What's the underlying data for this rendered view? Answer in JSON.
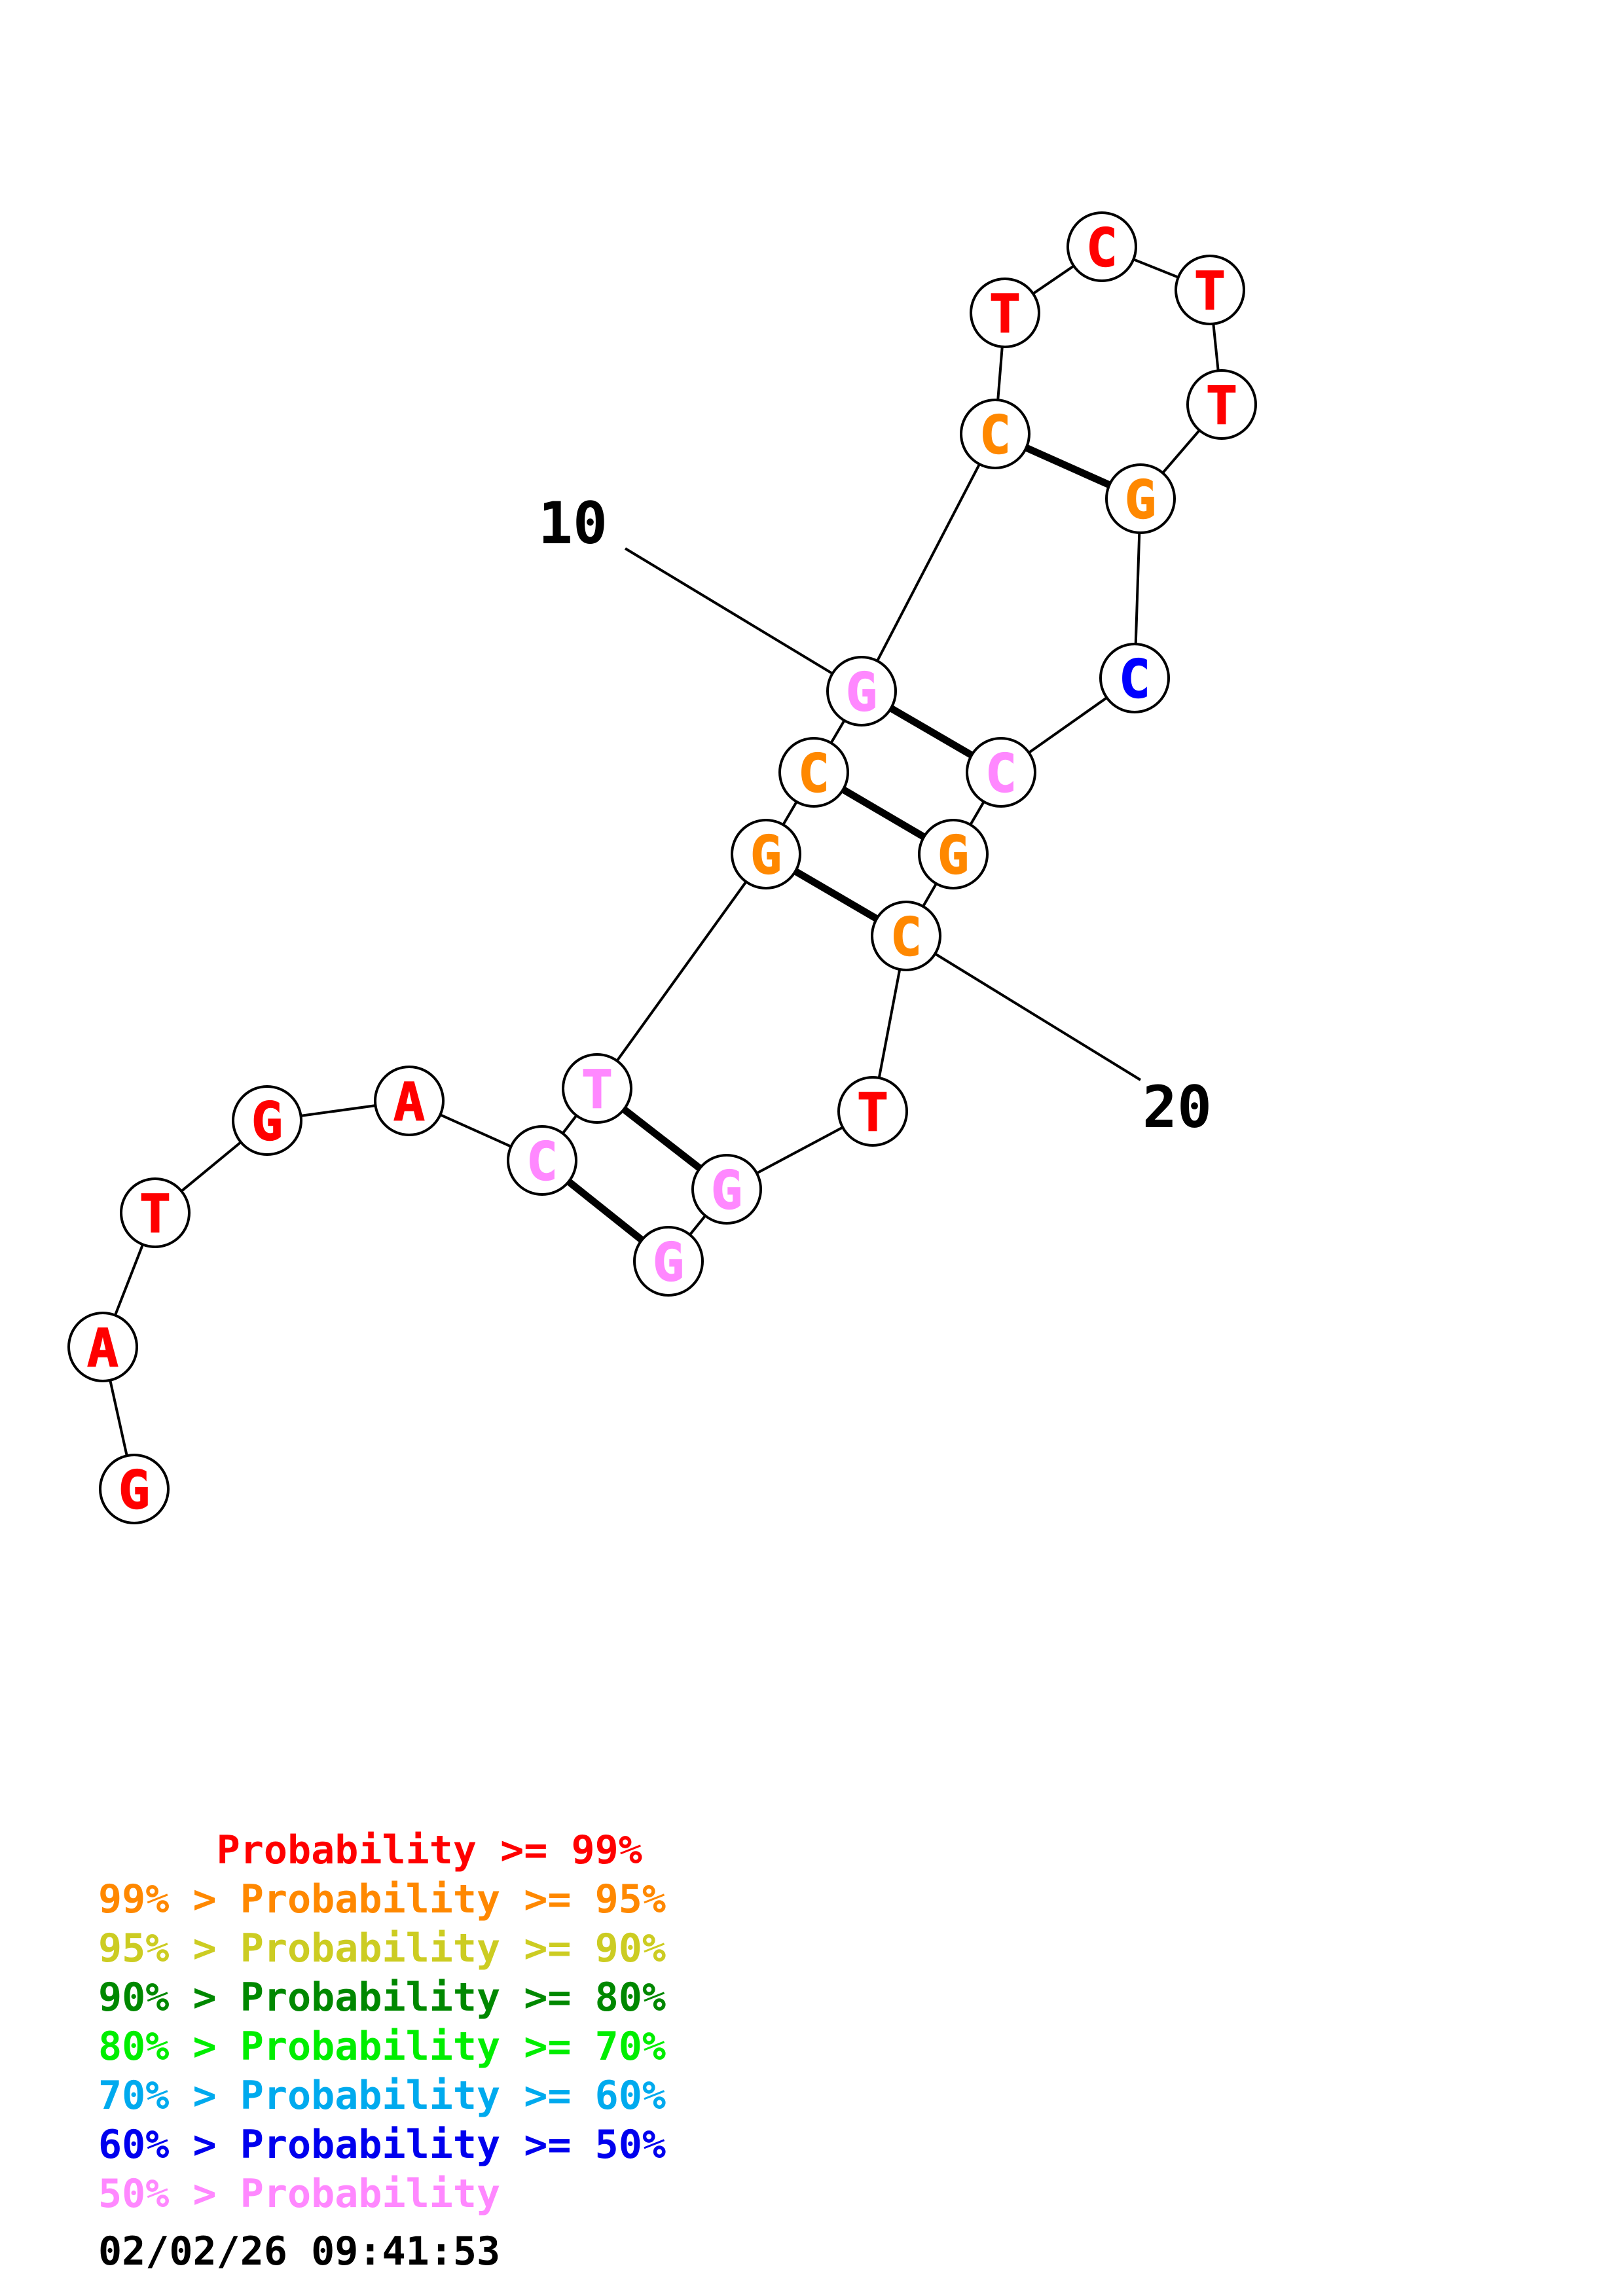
{
  "structure": {
    "nucleotides": [
      {
        "base": "G",
        "color": "#ff0000"
      },
      {
        "base": "A",
        "color": "#ff0000"
      },
      {
        "base": "T",
        "color": "#ff0000"
      },
      {
        "base": "G",
        "color": "#ff0000"
      },
      {
        "base": "A",
        "color": "#ff0000"
      },
      {
        "base": "C",
        "color": "#ff88ff"
      },
      {
        "base": "T",
        "color": "#ff88ff"
      },
      {
        "base": "G",
        "color": "#ff8800"
      },
      {
        "base": "C",
        "color": "#ff8800"
      },
      {
        "base": "G",
        "color": "#ff88ff"
      },
      {
        "base": "C",
        "color": "#ff8800"
      },
      {
        "base": "T",
        "color": "#ff0000"
      },
      {
        "base": "C",
        "color": "#ff0000"
      },
      {
        "base": "T",
        "color": "#ff0000"
      },
      {
        "base": "T",
        "color": "#ff0000"
      },
      {
        "base": "G",
        "color": "#ff8800"
      },
      {
        "base": "C",
        "color": "#0000ff"
      },
      {
        "base": "C",
        "color": "#ff88ff"
      },
      {
        "base": "G",
        "color": "#ff8800"
      },
      {
        "base": "C",
        "color": "#ff8800"
      },
      {
        "base": "T",
        "color": "#ff0000"
      },
      {
        "base": "G",
        "color": "#ff88ff"
      },
      {
        "base": "G",
        "color": "#ff88ff"
      }
    ],
    "pairs": [
      [
        6,
        23
      ],
      [
        7,
        22
      ],
      [
        8,
        20
      ],
      [
        9,
        19
      ],
      [
        10,
        18
      ],
      [
        11,
        16
      ]
    ],
    "position_labels": [
      {
        "text": "10",
        "index": 10
      },
      {
        "text": "20",
        "index": 20
      }
    ]
  },
  "legend": [
    {
      "text": "     Probability >= 99%",
      "color": "#ff0000"
    },
    {
      "text": "99% > Probability >= 95%",
      "color": "#ff8800"
    },
    {
      "text": "95% > Probability >= 90%",
      "color": "#cccc22"
    },
    {
      "text": "90% > Probability >= 80%",
      "color": "#008800"
    },
    {
      "text": "80% > Probability >= 70%",
      "color": "#00ee00"
    },
    {
      "text": "70% > Probability >= 60%",
      "color": "#00aaee"
    },
    {
      "text": "60% > Probability >= 50%",
      "color": "#0000ee"
    },
    {
      "text": "50% > Probability",
      "color": "#ff88ff"
    }
  ],
  "timestamp": "02/02/26 09:41:53"
}
